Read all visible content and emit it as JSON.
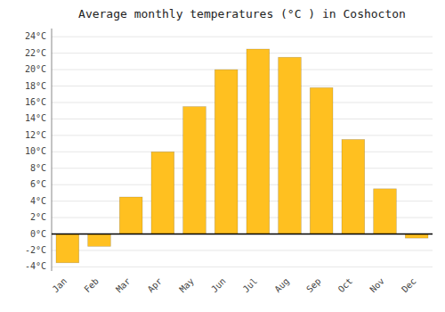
{
  "chart_data": {
    "type": "bar",
    "title": "Average monthly temperatures (°C ) in Coshocton",
    "categories": [
      "Jan",
      "Feb",
      "Mar",
      "Apr",
      "May",
      "Jun",
      "Jul",
      "Aug",
      "Sep",
      "Oct",
      "Nov",
      "Dec"
    ],
    "values": [
      -3.5,
      -1.5,
      4.5,
      10.0,
      15.5,
      20.0,
      22.5,
      21.5,
      17.8,
      11.5,
      5.5,
      -0.5
    ],
    "color": "#FFC020",
    "ylim": [
      -4.5,
      25
    ],
    "yticks": [
      {
        "value": -4,
        "label": "-4°C"
      },
      {
        "value": -2,
        "label": "-2°C"
      },
      {
        "value": 0,
        "label": "0°C"
      },
      {
        "value": 2,
        "label": "2°C"
      },
      {
        "value": 4,
        "label": "4°C"
      },
      {
        "value": 6,
        "label": "6°C"
      },
      {
        "value": 8,
        "label": "8°C"
      },
      {
        "value": 10,
        "label": "10°C"
      },
      {
        "value": 12,
        "label": "12°C"
      },
      {
        "value": 14,
        "label": "14°C"
      },
      {
        "value": 16,
        "label": "16°C"
      },
      {
        "value": 18,
        "label": "18°C"
      },
      {
        "value": 20,
        "label": "20°C"
      },
      {
        "value": 22,
        "label": "22°C"
      },
      {
        "value": 24,
        "label": "24°C"
      }
    ],
    "grid": true
  }
}
